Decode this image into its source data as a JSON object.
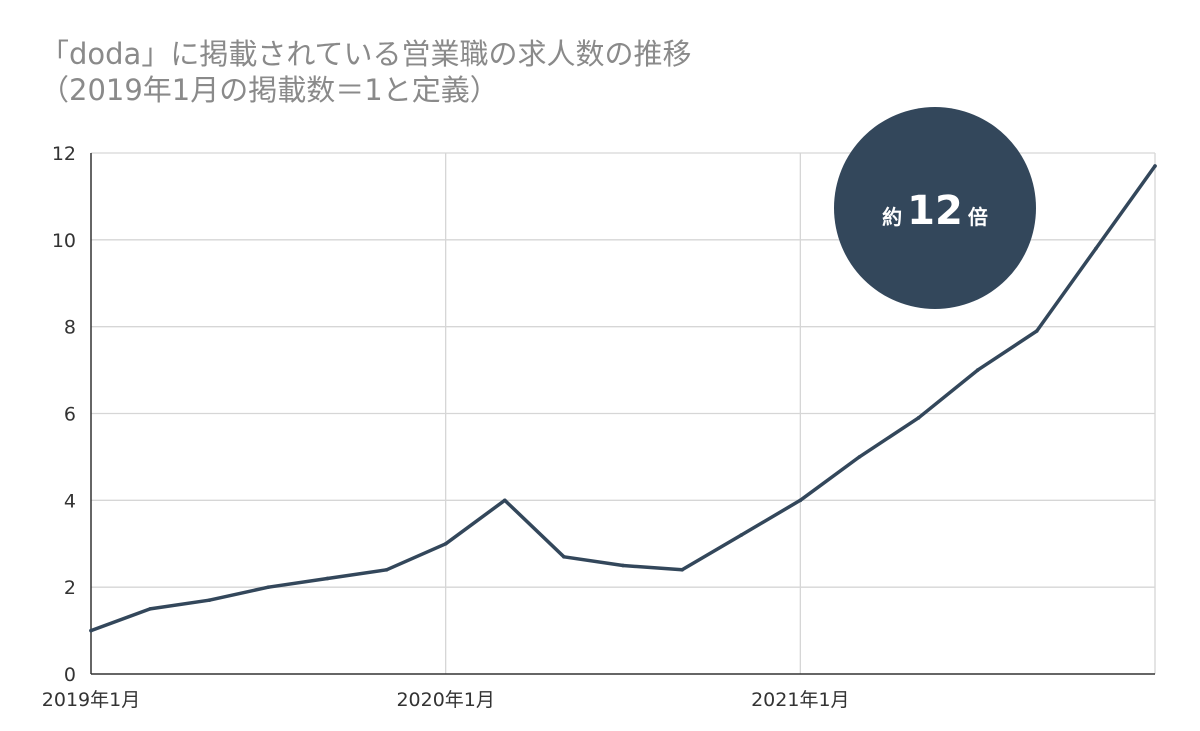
{
  "chart_data": {
    "type": "line",
    "title": "「doda」に掲載されている営業職の求人数の推移",
    "subtitle": "（2019年1月の掲載数＝1と定義）",
    "xlabel": "",
    "ylabel": "",
    "ylim": [
      0,
      12
    ],
    "yticks": [
      "0",
      "2",
      "4",
      "6",
      "8",
      "10",
      "12"
    ],
    "xtick_labels": [
      {
        "label": "2019年1月",
        "index": 0
      },
      {
        "label": "2020年1月",
        "index": 6
      },
      {
        "label": "2021年1月",
        "index": 12
      }
    ],
    "grid": true,
    "series": [
      {
        "color": "#33475b",
        "values": [
          1.0,
          1.5,
          1.7,
          2.0,
          2.2,
          2.4,
          3.0,
          4.0,
          2.7,
          2.5,
          2.4,
          3.2,
          4.0,
          5.0,
          5.9,
          7.0,
          7.9,
          9.8,
          11.7
        ]
      }
    ],
    "annotation": {
      "prefix": "約",
      "number": "12",
      "suffix": "倍",
      "color": "#33475b"
    }
  }
}
